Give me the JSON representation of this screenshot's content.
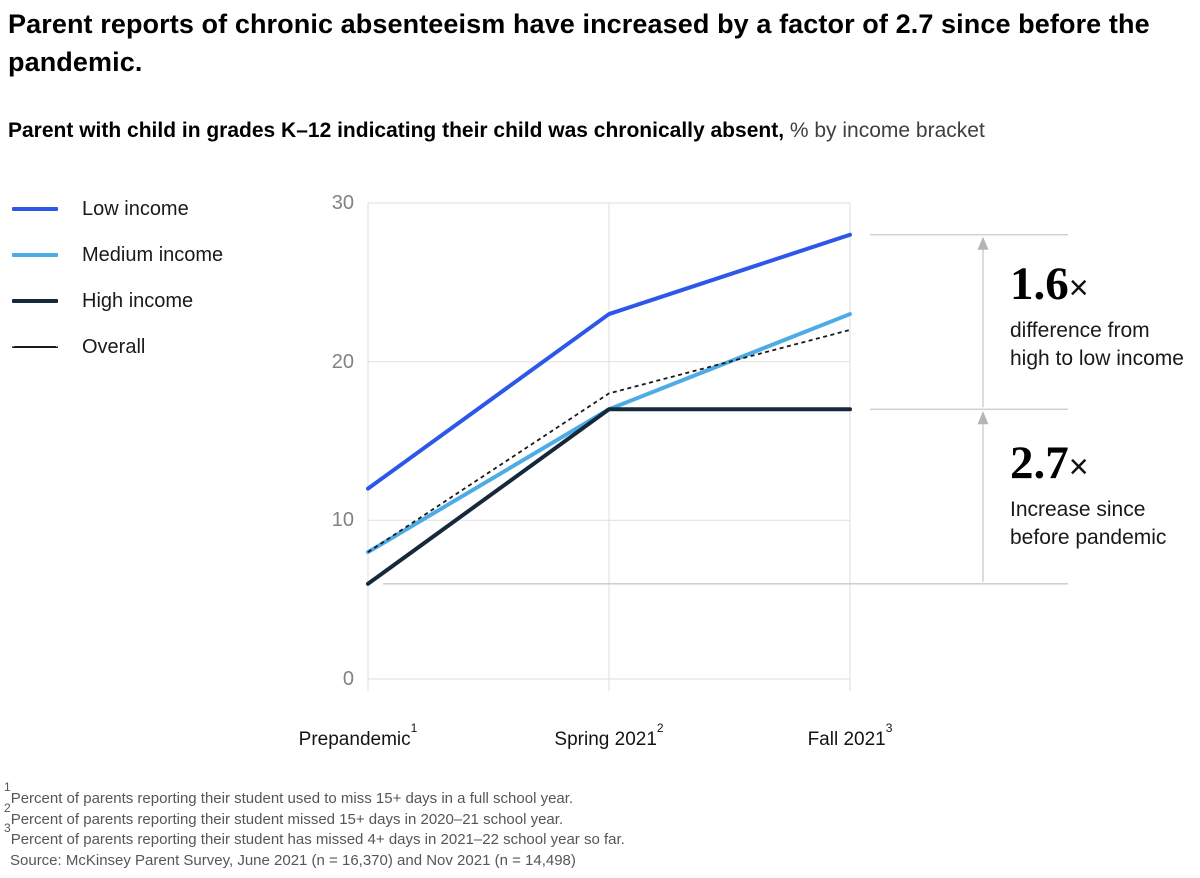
{
  "title": "Parent reports of chronic absenteeism have increased by a factor of 2.7 since before the pandemic.",
  "subtitle": {
    "bold": "Parent with child in grades K–12 indicating their child was chronically absent,",
    "regular": " % by income bracket"
  },
  "chart_data": {
    "type": "line",
    "unit": "%",
    "categories": [
      {
        "label": "Prepandemic",
        "sup": "1"
      },
      {
        "label": "Spring 2021",
        "sup": "2"
      },
      {
        "label": "Fall 2021",
        "sup": "3"
      }
    ],
    "yticks": [
      0,
      10,
      20,
      30
    ],
    "ylim": [
      0,
      30
    ],
    "grid": true,
    "legend_position": "left",
    "series": [
      {
        "name": "Low income",
        "values": [
          12,
          23,
          28
        ],
        "color": "#2d57e8",
        "style": "solid"
      },
      {
        "name": "Medium income",
        "values": [
          8,
          17,
          23
        ],
        "color": "#4dabe5",
        "style": "solid"
      },
      {
        "name": "High income",
        "values": [
          6,
          17,
          17
        ],
        "color": "#16293c",
        "style": "solid"
      },
      {
        "name": "Overall",
        "values": [
          8,
          18,
          22
        ],
        "color": "#1a1a1a",
        "style": "dashed"
      }
    ],
    "annotations": [
      {
        "factor": "1.6",
        "times": "×",
        "text_lines": [
          "difference from",
          "high to low income"
        ],
        "from_value": 17,
        "to_value": 28
      },
      {
        "factor": "2.7",
        "times": "×",
        "text_lines": [
          "Increase since",
          "before pandemic"
        ],
        "from_value": 6,
        "to_value": 17
      }
    ]
  },
  "footnotes": [
    {
      "sup": "1",
      "text": "Percent of parents reporting their student used to miss 15+ days in a full school year."
    },
    {
      "sup": "2",
      "text": "Percent of parents reporting their student missed 15+ days in 2020–21 school year."
    },
    {
      "sup": "3",
      "text": "Percent of parents reporting their student has missed 4+ days in 2021–22 school year so far."
    }
  ],
  "source": "Source: McKinsey Parent Survey, June 2021 (n = 16,370) and Nov 2021 (n = 14,498)",
  "colors": {
    "grid": "#e3e3e3",
    "axis_label": "#828282",
    "annotation_line": "#c9c9c9",
    "arrow": "#b5b5b5"
  }
}
